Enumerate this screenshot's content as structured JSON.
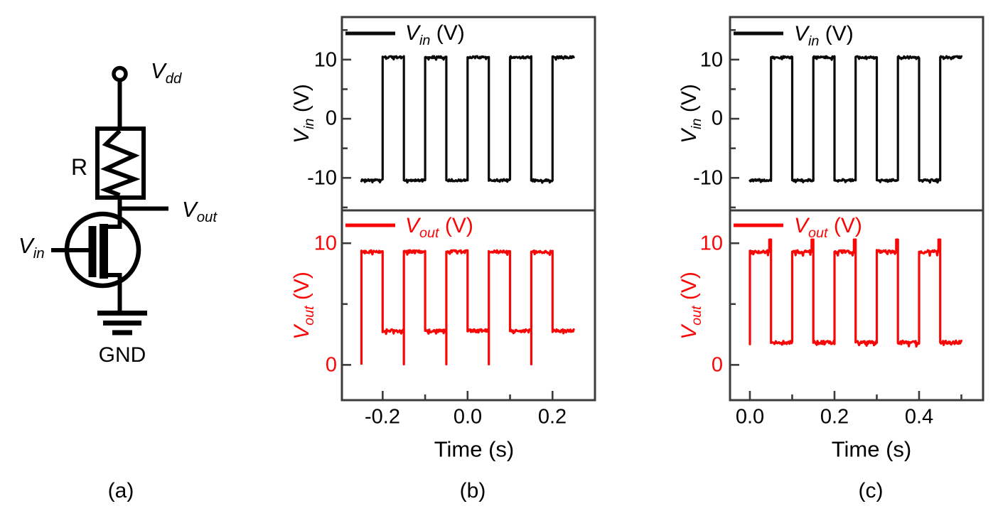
{
  "panel_labels": {
    "a": "(a)",
    "b": "(b)",
    "c": "(c)"
  },
  "circuit": {
    "vdd": {
      "sym": "V",
      "sub": "dd"
    },
    "resistor": "R",
    "vout": {
      "sym": "V",
      "sub": "out"
    },
    "vin": {
      "sym": "V",
      "sub": "in"
    },
    "gnd": "GND"
  },
  "chart_data": [
    {
      "id": "b",
      "type": "line",
      "title": "",
      "xlabel": "Time (s)",
      "xlim": [
        -0.296,
        0.3
      ],
      "grid": false,
      "xticks": {
        "major": [
          -0.2,
          0.0,
          0.2
        ],
        "minor": [
          -0.1,
          0.1
        ],
        "labels": [
          "-0.2",
          "0.0",
          "0.2"
        ]
      },
      "subplots": [
        {
          "name": "Vin",
          "color": "#0a0a0a",
          "ylabel": {
            "sym": "V",
            "sub": "in",
            "unit": " (V)"
          },
          "legend": {
            "sym": "V",
            "sub": "in",
            "unit": " (V)"
          },
          "ylim": [
            -15.5,
            17.2
          ],
          "yticks": {
            "major": [
              10,
              0,
              -10
            ],
            "minor": [
              15,
              5,
              -5,
              -15
            ],
            "labels": [
              "10",
              "0",
              "-10"
            ]
          },
          "wave": {
            "start": -0.25,
            "end": 0.25,
            "high": 10.4,
            "low": -10.4,
            "first": "low",
            "rises": [
              -0.2,
              -0.1,
              0.0,
              0.1,
              0.2
            ],
            "falls": [
              -0.15,
              -0.05,
              0.05,
              0.15
            ],
            "noise": 0.18
          }
        },
        {
          "name": "Vout",
          "color": "#f80707",
          "ylabel": {
            "sym": "V",
            "sub": "out",
            "unit": " (V)"
          },
          "legend": {
            "sym": "V",
            "sub": "out",
            "unit": " (V)"
          },
          "ylim": [
            -2.9,
            12.7
          ],
          "yticks": {
            "major": [
              10,
              0
            ],
            "minor": [
              5
            ],
            "labels": [
              "10",
              "0"
            ]
          },
          "wave": {
            "start": -0.25,
            "end": 0.25,
            "high": 9.3,
            "low": 2.8,
            "first": "high",
            "rises": [
              -0.15,
              -0.05,
              0.05,
              0.15
            ],
            "falls": [
              -0.2,
              -0.1,
              0.0,
              0.1,
              0.2
            ],
            "noise": 0.12,
            "start_from": 0.1,
            "glitch": {
              "on": "rise",
              "level": 0.05
            }
          }
        }
      ]
    },
    {
      "id": "c",
      "type": "line",
      "title": "",
      "xlabel": "Time (s)",
      "xlim": [
        -0.047,
        0.5513
      ],
      "grid": false,
      "xticks": {
        "major": [
          0.0,
          0.2,
          0.4
        ],
        "minor": [
          0.1,
          0.3,
          0.5
        ],
        "labels": [
          "0.0",
          "0.2",
          "0.4"
        ]
      },
      "subplots": [
        {
          "name": "Vin",
          "color": "#0a0a0a",
          "ylabel": {
            "sym": "V",
            "sub": "in",
            "unit": " (V)"
          },
          "legend": {
            "sym": "V",
            "sub": "in",
            "unit": " (V)"
          },
          "ylim": [
            -15.5,
            17.2
          ],
          "yticks": {
            "major": [
              10,
              0,
              -10
            ],
            "minor": [
              15,
              5,
              -5,
              -15
            ],
            "labels": [
              "10",
              "0",
              "-10"
            ]
          },
          "wave": {
            "start": 0.0,
            "end": 0.5,
            "high": 10.4,
            "low": -10.4,
            "first": "low",
            "rises": [
              0.05,
              0.15,
              0.25,
              0.35,
              0.45
            ],
            "falls": [
              0.1,
              0.2,
              0.3,
              0.4
            ],
            "noise": 0.18
          }
        },
        {
          "name": "Vout",
          "color": "#f80707",
          "ylabel": {
            "sym": "V",
            "sub": "out",
            "unit": " (V)"
          },
          "legend": {
            "sym": "V",
            "sub": "out",
            "unit": " (V)"
          },
          "ylim": [
            -2.9,
            12.7
          ],
          "yticks": {
            "major": [
              10,
              0
            ],
            "minor": [
              5
            ],
            "labels": [
              "10",
              "0"
            ]
          },
          "wave": {
            "start": 0.0,
            "end": 0.5,
            "high": 9.3,
            "low": 1.85,
            "first": "high",
            "rises": [
              0.1,
              0.2,
              0.3,
              0.4
            ],
            "falls": [
              0.05,
              0.15,
              0.25,
              0.35,
              0.45
            ],
            "noise": 0.14,
            "start_from": 1.7,
            "glitch": {
              "on": "fall",
              "level": 10.3,
              "lead": 0.004
            }
          }
        }
      ]
    }
  ]
}
